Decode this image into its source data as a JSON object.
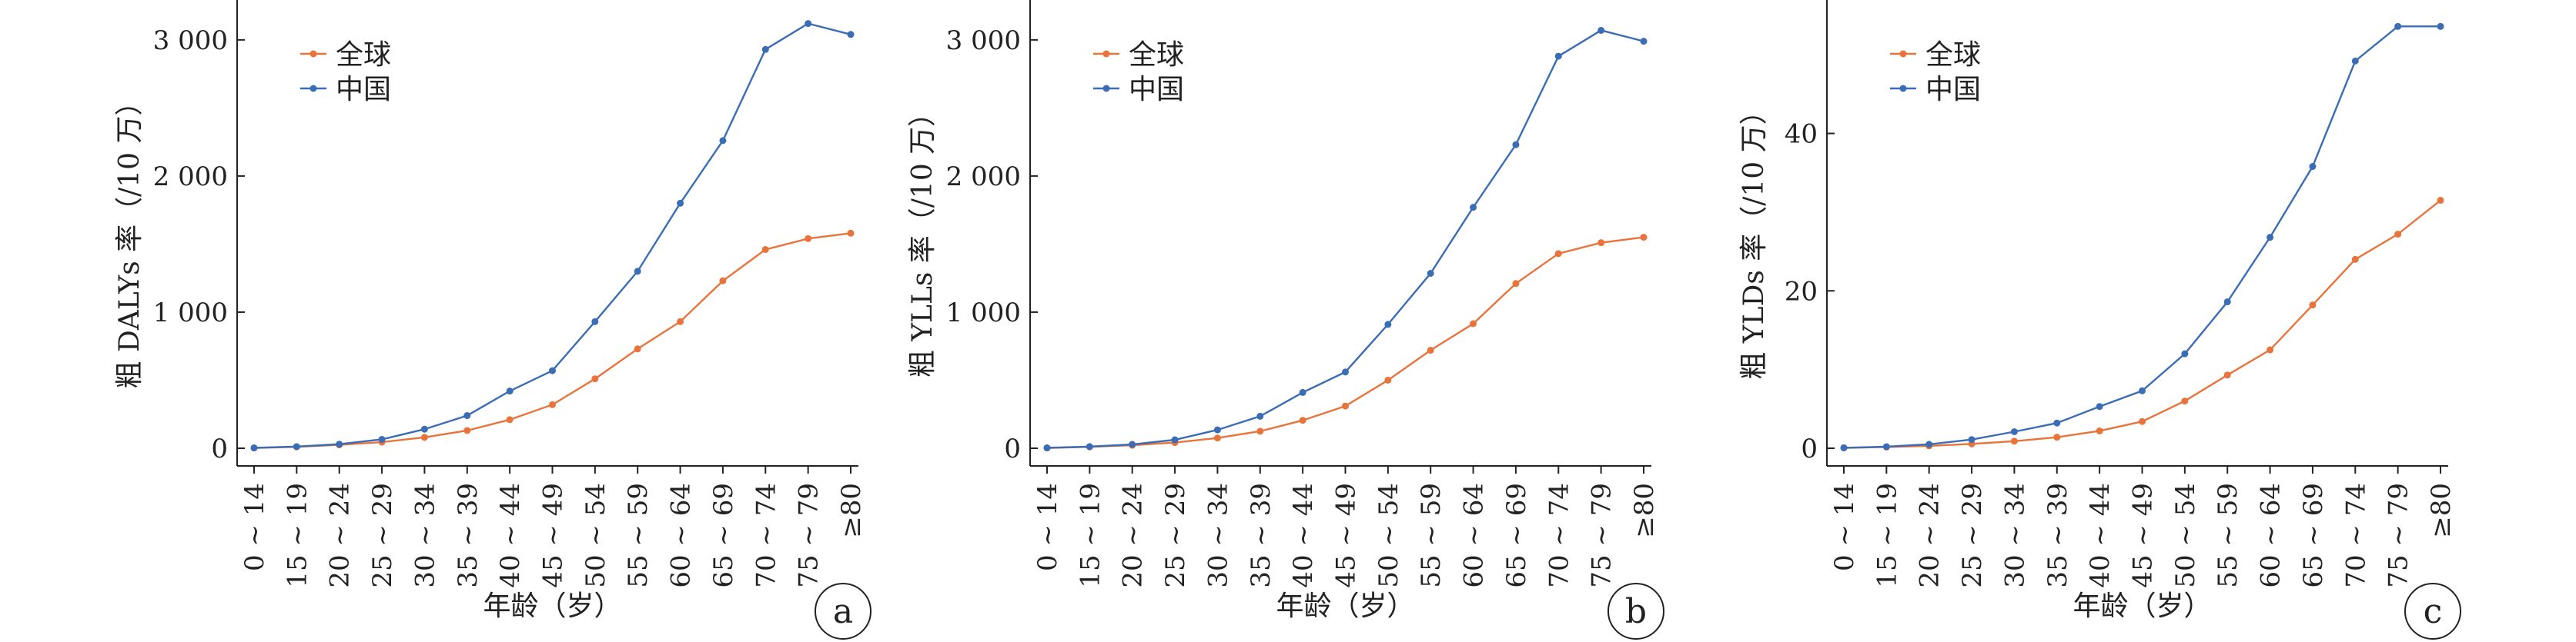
{
  "chart_data": [
    {
      "type": "line",
      "panel_label": "a",
      "ylabel": "粗 DALYs 率（/10 万）",
      "xlabel": "年龄（岁）",
      "categories": [
        "0 ~ 14",
        "15 ~ 19",
        "20 ~ 24",
        "25 ~ 29",
        "30 ~ 34",
        "35 ~ 39",
        "40 ~ 44",
        "45 ~ 49",
        "50 ~ 54",
        "55 ~ 59",
        "60 ~ 64",
        "65 ~ 69",
        "70 ~ 74",
        "75 ~ 79",
        "≥80"
      ],
      "yticks": [
        0,
        1000,
        2000,
        3000
      ],
      "ytick_labels": [
        "0",
        "1 000",
        "2 000",
        "3 000"
      ],
      "ylim": [
        -40,
        3180
      ],
      "legend_position": "top-left",
      "series": [
        {
          "name": "全球",
          "color": "#e8743b",
          "values": [
            2,
            10,
            25,
            45,
            80,
            130,
            210,
            320,
            510,
            730,
            930,
            1230,
            1460,
            1540,
            1580
          ]
        },
        {
          "name": "中国",
          "color": "#3a6db5",
          "values": [
            3,
            12,
            30,
            65,
            140,
            240,
            420,
            570,
            930,
            1300,
            1800,
            2260,
            2930,
            3120,
            3040
          ]
        }
      ]
    },
    {
      "type": "line",
      "panel_label": "b",
      "ylabel": "粗 YLLs 率（/10 万）",
      "xlabel": "年龄（岁）",
      "categories": [
        "0 ~ 14",
        "15 ~ 19",
        "20 ~ 24",
        "25 ~ 29",
        "30 ~ 34",
        "35 ~ 39",
        "40 ~ 44",
        "45 ~ 49",
        "50 ~ 54",
        "55 ~ 59",
        "60 ~ 64",
        "65 ~ 69",
        "70 ~ 74",
        "75 ~ 79",
        "≥80"
      ],
      "yticks": [
        0,
        1000,
        2000,
        3000
      ],
      "ytick_labels": [
        "0",
        "1 000",
        "2 000",
        "3 000"
      ],
      "ylim": [
        -40,
        3180
      ],
      "legend_position": "top-left",
      "series": [
        {
          "name": "全球",
          "color": "#e8743b",
          "values": [
            2,
            10,
            22,
            42,
            75,
            125,
            205,
            310,
            500,
            720,
            915,
            1210,
            1430,
            1510,
            1550
          ]
        },
        {
          "name": "中国",
          "color": "#3a6db5",
          "values": [
            3,
            12,
            28,
            62,
            135,
            235,
            410,
            560,
            910,
            1285,
            1770,
            2230,
            2880,
            3070,
            2990
          ]
        }
      ]
    },
    {
      "type": "line",
      "panel_label": "c",
      "ylabel": "粗 YLDs 率（/10 万）",
      "xlabel": "年龄（岁）",
      "categories": [
        "0 ~ 14",
        "15 ~ 19",
        "20 ~ 24",
        "25 ~ 29",
        "30 ~ 34",
        "35 ~ 39",
        "40 ~ 44",
        "45 ~ 49",
        "50 ~ 54",
        "55 ~ 59",
        "60 ~ 64",
        "65 ~ 69",
        "70 ~ 74",
        "75 ~ 79",
        "≥80"
      ],
      "yticks": [
        0,
        20,
        40
      ],
      "ytick_labels": [
        "0",
        "20",
        "40"
      ],
      "ylim": [
        -1,
        55
      ],
      "legend_position": "top-left",
      "series": [
        {
          "name": "全球",
          "color": "#e8743b",
          "values": [
            0.05,
            0.15,
            0.3,
            0.55,
            0.9,
            1.4,
            2.2,
            3.4,
            6.0,
            9.3,
            12.5,
            18.2,
            24.0,
            27.2,
            31.5
          ]
        },
        {
          "name": "中国",
          "color": "#3a6db5",
          "values": [
            0.05,
            0.2,
            0.5,
            1.1,
            2.1,
            3.2,
            5.3,
            7.3,
            12.0,
            18.6,
            26.8,
            35.8,
            49.2,
            53.6,
            53.6
          ]
        }
      ]
    }
  ]
}
